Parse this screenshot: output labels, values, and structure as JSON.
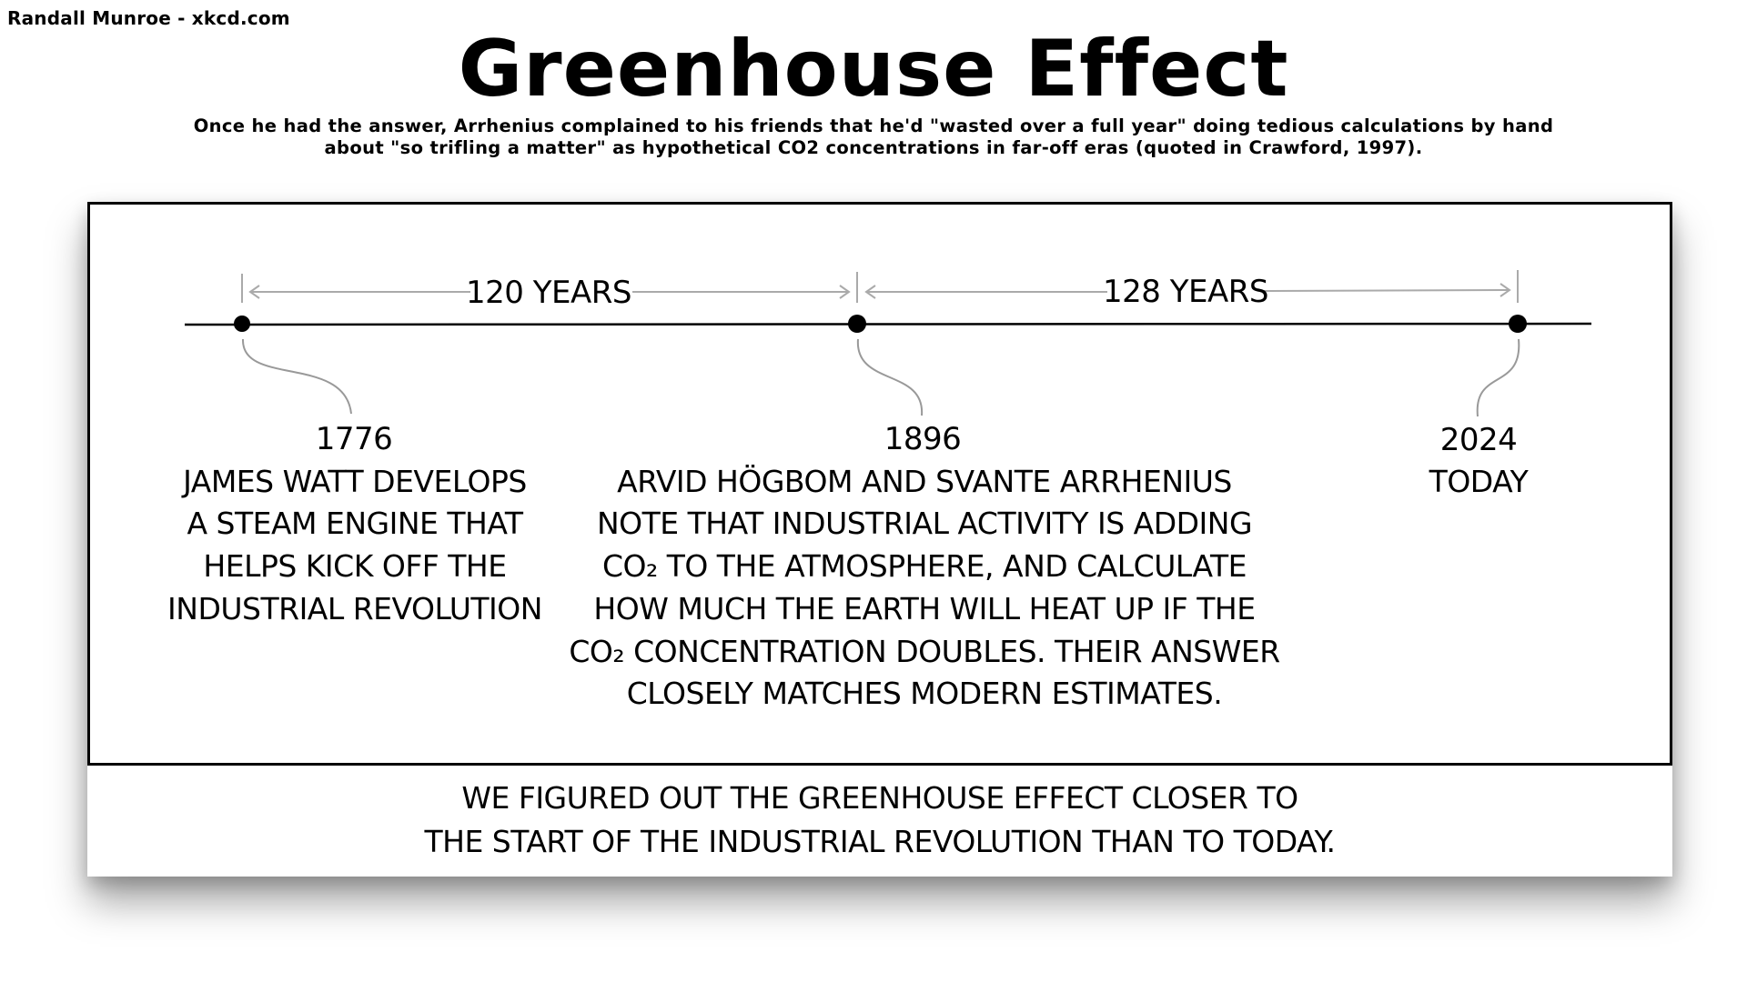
{
  "page": {
    "credit": "Randall Munroe - xkcd.com",
    "title": "Greenhouse Effect",
    "subtitle": "Once he had the answer, Arrhenius complained to his friends that he'd \"wasted over a full year\" doing tedious calculations by hand about \"so trifling a matter\" as hypothetical CO2 concentrations in far-off eras (quoted in Crawford, 1997)."
  },
  "comic": {
    "spans": [
      {
        "label": "120 YEARS"
      },
      {
        "label": "128 YEARS"
      }
    ],
    "events": [
      {
        "year": "1776",
        "lines": [
          "JAMES WATT DEVELOPS",
          "A STEAM ENGINE THAT",
          "HELPS KICK OFF THE",
          "INDUSTRIAL REVOLUTION"
        ]
      },
      {
        "year": "1896",
        "lines": [
          "ARVID HÖGBOM AND SVANTE ARRHENIUS",
          "NOTE THAT INDUSTRIAL ACTIVITY IS ADDING",
          "CO₂ TO THE ATMOSPHERE, AND CALCULATE",
          "HOW MUCH THE EARTH WILL HEAT UP IF THE",
          "CO₂ CONCENTRATION DOUBLES. THEIR ANSWER",
          "CLOSELY MATCHES MODERN ESTIMATES."
        ]
      },
      {
        "year": "2024",
        "lines": [
          "TODAY"
        ]
      }
    ],
    "caption_lines": [
      "WE FIGURED OUT THE GREENHOUSE EFFECT CLOSER TO",
      "THE START OF THE INDUSTRIAL REVOLUTION THAN TO TODAY."
    ]
  },
  "colors": {
    "ink": "#000000",
    "arrow_gray": "#aaaaaa",
    "connector_gray": "#999999"
  }
}
